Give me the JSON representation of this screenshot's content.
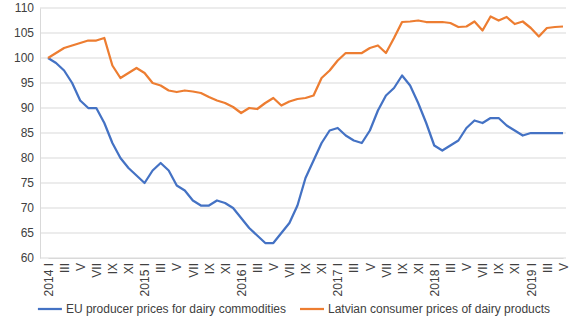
{
  "chart_data": {
    "type": "line",
    "categories": [
      "2014 I",
      null,
      "III",
      null,
      "V",
      null,
      "VII",
      null,
      "IX",
      null,
      "XI",
      null,
      "2015 I",
      null,
      "III",
      null,
      "V",
      null,
      "VII",
      null,
      "IX",
      null,
      "XI",
      null,
      "2016 I",
      null,
      "III",
      null,
      "V",
      null,
      "VII",
      null,
      "IX",
      null,
      "XI",
      null,
      "2017 I",
      null,
      "III",
      null,
      "V",
      null,
      "VII",
      null,
      "IX",
      null,
      "XI",
      null,
      "2018 I",
      null,
      "III",
      null,
      "V",
      null,
      "VII",
      null,
      "IX",
      null,
      "XI",
      null,
      "2019 I",
      null,
      "III",
      null,
      "V"
    ],
    "series": [
      {
        "name": "EU producer prices for dairy commodities",
        "color": "#4472c4",
        "values": [
          100,
          99,
          97.5,
          95,
          91.5,
          90,
          90,
          87,
          83,
          80,
          78,
          76.5,
          75,
          77.5,
          79,
          77.5,
          74.5,
          73.5,
          71.5,
          70.5,
          70.5,
          71.5,
          71,
          70,
          68,
          66,
          64.5,
          63,
          63,
          65,
          67,
          70.5,
          76,
          79.5,
          83,
          85.5,
          86,
          84.5,
          83.5,
          83,
          85.5,
          89.5,
          92.5,
          94,
          96.5,
          94.5,
          91,
          87,
          82.5,
          81.5,
          82.5,
          83.5,
          86,
          87.5,
          87,
          88,
          88,
          86.5,
          85.5,
          84.5,
          85,
          85,
          85,
          85,
          85
        ]
      },
      {
        "name": "Latvian consumer prices of dairy products",
        "color": "#ed7d31",
        "values": [
          100,
          101,
          102,
          102.5,
          103,
          103.5,
          103.5,
          104,
          98.5,
          96,
          97,
          98,
          97,
          95,
          94.5,
          93.5,
          93.2,
          93.5,
          93.3,
          93,
          92.2,
          91.5,
          91,
          90.2,
          89,
          90,
          89.8,
          91,
          92,
          90.5,
          91.3,
          91.8,
          92,
          92.5,
          96,
          97.5,
          99.5,
          101,
          101,
          101,
          102,
          102.5,
          101,
          104,
          107.2,
          107.3,
          107.5,
          107.2,
          107.2,
          107.2,
          107,
          106.2,
          106.3,
          107.3,
          105.5,
          108.3,
          107.5,
          108.2,
          106.8,
          107.3,
          106,
          104.3,
          106,
          106.2,
          106.3
        ]
      }
    ],
    "ylim": [
      60,
      110
    ],
    "yticks": [
      60,
      65,
      70,
      75,
      80,
      85,
      90,
      95,
      100,
      105,
      110
    ],
    "grid": true,
    "legend": "bottom"
  }
}
